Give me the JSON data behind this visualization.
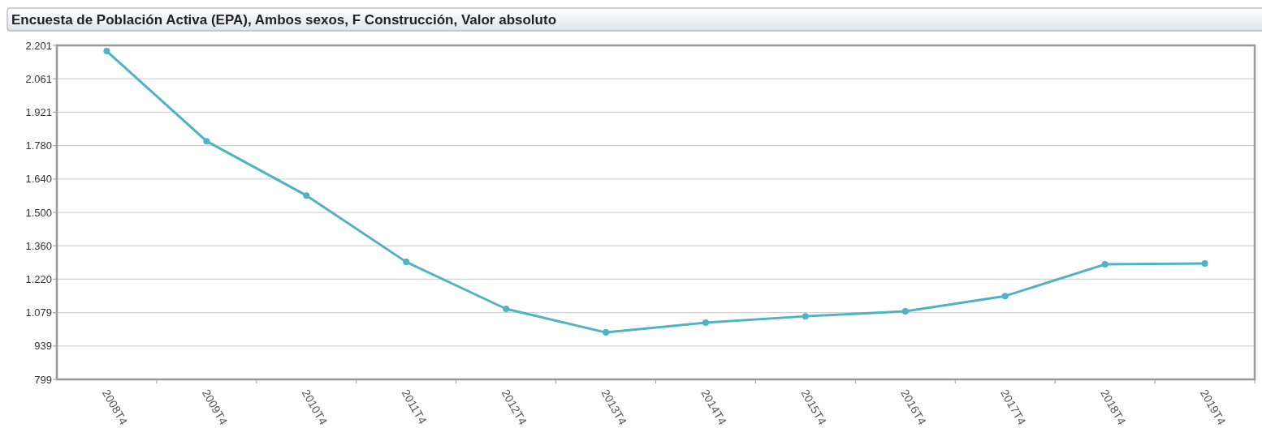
{
  "chart_data": {
    "type": "line",
    "title": "Encuesta de Población Activa (EPA), Ambos sexos, F Construcción, Valor absoluto",
    "categories": [
      "2008T4",
      "2009T4",
      "2010T4",
      "2011T4",
      "2012T4",
      "2013T4",
      "2014T4",
      "2015T4",
      "2016T4",
      "2017T4",
      "2018T4",
      "2019T4"
    ],
    "series": [
      {
        "color": "#4fb3c4",
        "values": [
          2177,
          1799,
          1571,
          1292,
          1095,
          996,
          1037,
          1064,
          1085,
          1149,
          1282,
          1286
        ]
      }
    ],
    "ylim": [
      799,
      2201
    ],
    "yticks": [
      {
        "value": 799,
        "label": "799"
      },
      {
        "value": 939,
        "label": "939"
      },
      {
        "value": 1079,
        "label": "1.079"
      },
      {
        "value": 1220,
        "label": "1.220"
      },
      {
        "value": 1360,
        "label": "1.360"
      },
      {
        "value": 1500,
        "label": "1.500"
      },
      {
        "value": 1640,
        "label": "1.640"
      },
      {
        "value": 1780,
        "label": "1.780"
      },
      {
        "value": 1921,
        "label": "1.921"
      },
      {
        "value": 2061,
        "label": "2.061"
      },
      {
        "value": 2201,
        "label": "2.201"
      }
    ],
    "grid": "y",
    "marker": "circle",
    "line_style": "solid"
  }
}
